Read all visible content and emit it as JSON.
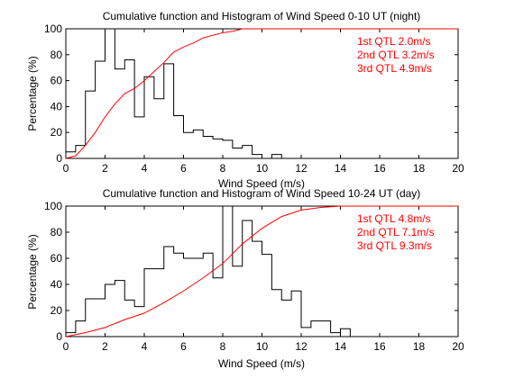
{
  "colors": {
    "histogram": "#000000",
    "cumulative": "#ff0000",
    "axes": "#000000",
    "background": "#ffffff"
  },
  "chart_data": [
    {
      "type": "bar",
      "subtype": "histogram-with-cumulative-line",
      "title": "Cumulative function and Histogram of Wind Speed 0-10 UT (night)",
      "xlabel": "Wind Speed (m/s)",
      "ylabel": "Percentage (%)",
      "xlim": [
        0,
        20
      ],
      "ylim": [
        0,
        100
      ],
      "xticks": [
        0,
        2,
        4,
        6,
        8,
        10,
        12,
        14,
        16,
        18,
        20
      ],
      "yticks": [
        0,
        20,
        40,
        60,
        80,
        100
      ],
      "grid": false,
      "annotations": [
        "1st QTL 2.0m/s",
        "2nd QTL 3.2m/s",
        "3rd QTL 4.9m/s"
      ],
      "annotation_color": "#ff0000",
      "histogram": {
        "bin_edges": [
          0,
          0.5,
          1,
          1.5,
          2,
          2.5,
          3,
          3.5,
          4,
          4.5,
          5,
          5.5,
          6,
          6.5,
          7,
          7.5,
          8,
          8.5,
          9,
          9.5,
          10,
          10.5,
          11
        ],
        "values": [
          5,
          10,
          52,
          75,
          100,
          69,
          76,
          32,
          63,
          46,
          73,
          33,
          20,
          22,
          17,
          15,
          14,
          8,
          10,
          3,
          0,
          3
        ]
      },
      "cumulative": {
        "x": [
          0,
          0.5,
          1,
          1.5,
          2,
          2.5,
          3,
          3.5,
          4,
          4.5,
          5,
          5.5,
          6,
          6.5,
          7,
          7.5,
          8,
          8.5,
          9,
          20
        ],
        "y": [
          0,
          2,
          10,
          20,
          32,
          42,
          50,
          54,
          60,
          67,
          74,
          82,
          86,
          89,
          93,
          95,
          97,
          98,
          100,
          100
        ]
      }
    },
    {
      "type": "bar",
      "subtype": "histogram-with-cumulative-line",
      "title": "Cumulative function and Histogram of Wind Speed 10-24 UT (day)",
      "xlabel": "Wind Speed (m/s)",
      "ylabel": "Percentage (%)",
      "xlim": [
        0,
        20
      ],
      "ylim": [
        0,
        100
      ],
      "xticks": [
        0,
        2,
        4,
        6,
        8,
        10,
        12,
        14,
        16,
        18,
        20
      ],
      "yticks": [
        0,
        20,
        40,
        60,
        80,
        100
      ],
      "grid": false,
      "annotations": [
        "1st QTL 4.8m/s",
        "2nd QTL 7.1m/s",
        "3rd QTL 9.3m/s"
      ],
      "annotation_color": "#ff0000",
      "histogram": {
        "bin_edges": [
          0,
          0.5,
          1,
          1.5,
          2,
          2.5,
          3,
          3.5,
          4,
          4.5,
          5,
          5.5,
          6,
          6.5,
          7,
          7.5,
          8,
          8.5,
          9,
          9.5,
          10,
          10.5,
          11,
          11.5,
          12,
          12.5,
          13,
          13.5,
          14,
          14.5,
          15
        ],
        "values": [
          3,
          12,
          29,
          29,
          40,
          43,
          28,
          23,
          52,
          52,
          69,
          64,
          60,
          60,
          64,
          45,
          100,
          54,
          89,
          73,
          63,
          36,
          28,
          35,
          7,
          12,
          12,
          3,
          6,
          0
        ]
      },
      "cumulative": {
        "x": [
          0,
          1,
          2,
          3,
          4,
          5,
          6,
          7,
          8,
          9,
          10,
          11,
          12,
          13,
          14,
          20
        ],
        "y": [
          0,
          3,
          7,
          13,
          18,
          26,
          35,
          45,
          56,
          71,
          83,
          92,
          97,
          99,
          100,
          100
        ]
      }
    }
  ]
}
